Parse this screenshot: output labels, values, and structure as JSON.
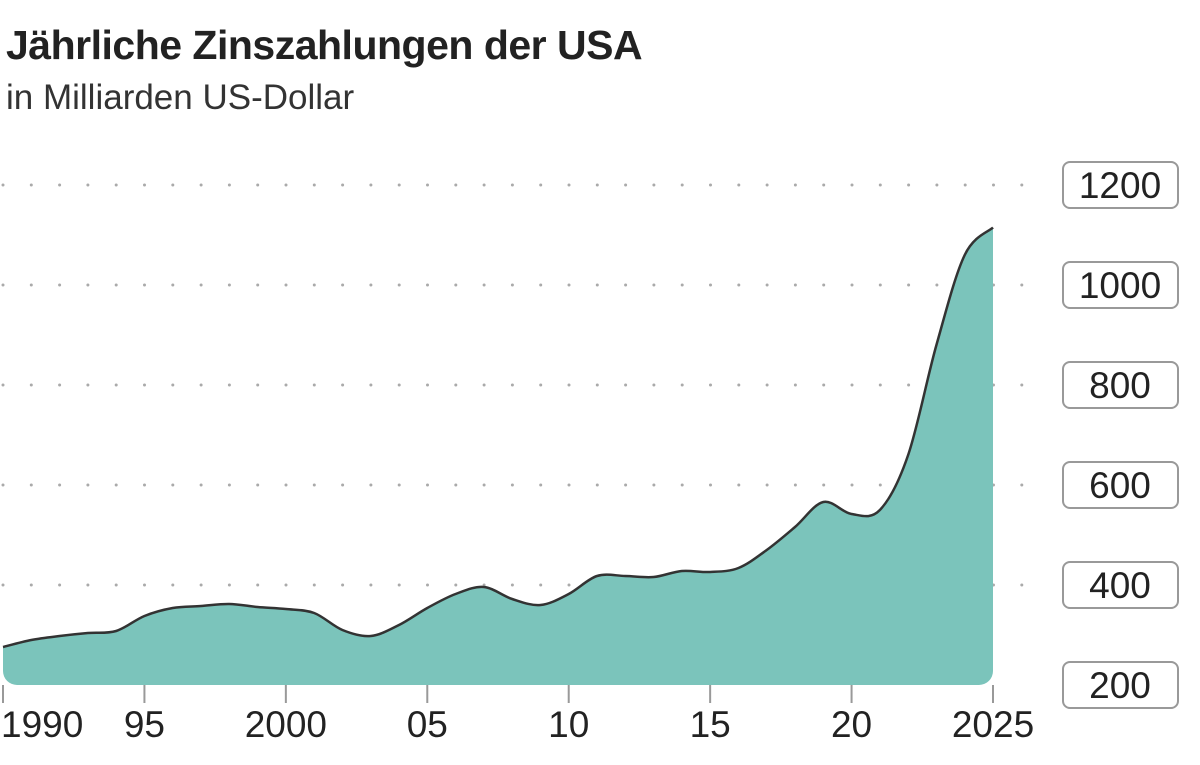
{
  "header": {
    "title": "Jährliche Zinszahlungen der USA",
    "subtitle": "in Milliarden US-Dollar"
  },
  "chart_data": {
    "type": "area",
    "title": "Jährliche Zinszahlungen der USA",
    "subtitle": "in Milliarden US-Dollar",
    "x": [
      1990,
      1991,
      1992,
      1993,
      1994,
      1995,
      1996,
      1997,
      1998,
      1999,
      2000,
      2001,
      2002,
      2003,
      2004,
      2005,
      2006,
      2007,
      2008,
      2009,
      2010,
      2011,
      2012,
      2013,
      2014,
      2015,
      2016,
      2017,
      2018,
      2019,
      2020,
      2021,
      2022,
      2023,
      2024,
      2025
    ],
    "values": [
      276,
      290,
      298,
      304,
      308,
      338,
      354,
      358,
      362,
      356,
      352,
      344,
      310,
      298,
      320,
      354,
      382,
      396,
      372,
      360,
      382,
      418,
      418,
      416,
      428,
      426,
      434,
      470,
      516,
      566,
      542,
      550,
      660,
      880,
      1060,
      1115
    ],
    "xlim": [
      1990,
      2025
    ],
    "ylim": [
      200,
      1200
    ],
    "yticks": [
      200,
      400,
      600,
      800,
      1000,
      1200
    ],
    "ytick_labels": [
      "200",
      "400",
      "600",
      "800",
      "1000",
      "1200"
    ],
    "xticks": [
      1990,
      1995,
      2000,
      2005,
      2010,
      2015,
      2020,
      2025
    ],
    "xtick_labels": [
      "1990",
      "95",
      "2000",
      "05",
      "10",
      "15",
      "20",
      "2025"
    ],
    "grid": "dotted horizontal",
    "y_axis_position": "right",
    "colors": {
      "fill": "#7bc4bb",
      "line": "#333333",
      "grid": "#aaaaaa",
      "label_border": "#999999"
    }
  }
}
